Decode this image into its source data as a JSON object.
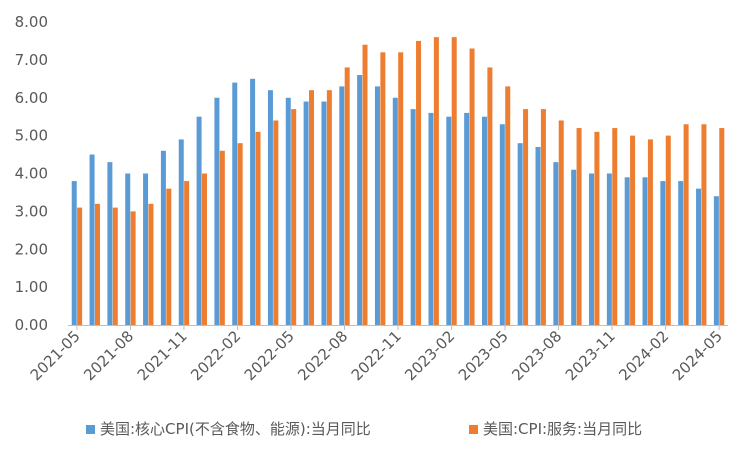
{
  "chart_data": {
    "type": "bar",
    "ylim": [
      0,
      8
    ],
    "yticks": [
      "0.00",
      "1.00",
      "2.00",
      "3.00",
      "4.00",
      "5.00",
      "6.00",
      "7.00",
      "8.00"
    ],
    "categories": [
      "2021-05",
      "2021-06",
      "2021-07",
      "2021-08",
      "2021-09",
      "2021-10",
      "2021-11",
      "2021-12",
      "2022-01",
      "2022-02",
      "2022-03",
      "2022-04",
      "2022-05",
      "2022-06",
      "2022-07",
      "2022-08",
      "2022-09",
      "2022-10",
      "2022-11",
      "2022-12",
      "2023-01",
      "2023-02",
      "2023-03",
      "2023-04",
      "2023-05",
      "2023-06",
      "2023-07",
      "2023-08",
      "2023-09",
      "2023-10",
      "2023-11",
      "2023-12",
      "2024-01",
      "2024-02",
      "2024-03",
      "2024-04",
      "2024-05"
    ],
    "xtick_labels": [
      "2021-05",
      "2021-08",
      "2021-11",
      "2022-02",
      "2022-05",
      "2022-08",
      "2022-11",
      "2023-02",
      "2023-05",
      "2023-08",
      "2023-11",
      "2024-02",
      "2024-05"
    ],
    "legend_position": "bottom",
    "series": [
      {
        "name": "美国:核心CPI(不含食物、能源):当月同比",
        "color": "#5B9BD5",
        "values": [
          3.8,
          4.5,
          4.3,
          4.0,
          4.0,
          4.6,
          4.9,
          5.5,
          6.0,
          6.4,
          6.5,
          6.2,
          6.0,
          5.9,
          5.9,
          6.3,
          6.6,
          6.3,
          6.0,
          5.7,
          5.6,
          5.5,
          5.6,
          5.5,
          5.3,
          4.8,
          4.7,
          4.3,
          4.1,
          4.0,
          4.0,
          3.9,
          3.9,
          3.8,
          3.8,
          3.6,
          3.4
        ]
      },
      {
        "name": "美国:CPI:服务:当月同比",
        "color": "#ED7D31",
        "values": [
          3.1,
          3.2,
          3.1,
          3.0,
          3.2,
          3.6,
          3.8,
          4.0,
          4.6,
          4.8,
          5.1,
          5.4,
          5.7,
          6.2,
          6.2,
          6.8,
          7.4,
          7.2,
          7.2,
          7.5,
          7.6,
          7.6,
          7.3,
          6.8,
          6.3,
          5.7,
          5.7,
          5.4,
          5.2,
          5.1,
          5.2,
          5.0,
          4.9,
          5.0,
          5.3,
          5.3,
          5.2
        ]
      }
    ]
  }
}
